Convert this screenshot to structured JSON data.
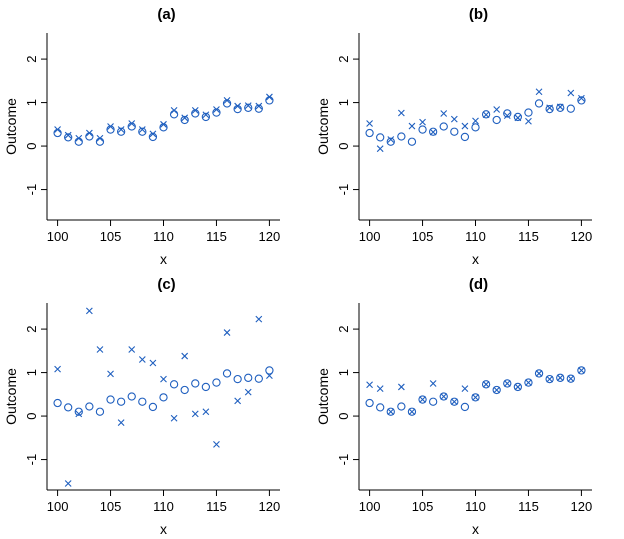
{
  "figure": {
    "marker_color": "#1f5fbf",
    "axis_color": "#000000"
  },
  "chart_data": [
    {
      "type": "scatter",
      "title": "(a)",
      "xlabel": "x",
      "ylabel": "Outcome",
      "xlim": [
        99,
        121
      ],
      "ylim": [
        -1.7,
        2.6
      ],
      "xticks": [
        100,
        105,
        110,
        115,
        120
      ],
      "yticks": [
        -1,
        0,
        1,
        2
      ],
      "x": [
        100,
        101,
        102,
        103,
        104,
        105,
        106,
        107,
        108,
        109,
        110,
        111,
        112,
        113,
        114,
        115,
        116,
        117,
        118,
        119,
        120
      ],
      "series": [
        {
          "name": "circles",
          "marker": "circle",
          "values": [
            0.3,
            0.2,
            0.1,
            0.22,
            0.1,
            0.38,
            0.33,
            0.45,
            0.33,
            0.21,
            0.43,
            0.73,
            0.6,
            0.75,
            0.67,
            0.77,
            0.98,
            0.85,
            0.88,
            0.86,
            1.05
          ]
        },
        {
          "name": "crosses",
          "marker": "x",
          "values": [
            0.38,
            0.25,
            0.18,
            0.3,
            0.18,
            0.45,
            0.38,
            0.52,
            0.38,
            0.28,
            0.5,
            0.82,
            0.65,
            0.82,
            0.72,
            0.84,
            1.05,
            0.92,
            0.93,
            0.92,
            1.13
          ]
        }
      ]
    },
    {
      "type": "scatter",
      "title": "(b)",
      "xlabel": "x",
      "ylabel": "Outcome",
      "xlim": [
        99,
        121
      ],
      "ylim": [
        -1.7,
        2.6
      ],
      "xticks": [
        100,
        105,
        110,
        115,
        120
      ],
      "yticks": [
        -1,
        0,
        1,
        2
      ],
      "x": [
        100,
        101,
        102,
        103,
        104,
        105,
        106,
        107,
        108,
        109,
        110,
        111,
        112,
        113,
        114,
        115,
        116,
        117,
        118,
        119,
        120
      ],
      "series": [
        {
          "name": "circles",
          "marker": "circle",
          "values": [
            0.3,
            0.2,
            0.1,
            0.22,
            0.1,
            0.38,
            0.33,
            0.45,
            0.33,
            0.21,
            0.43,
            0.73,
            0.6,
            0.75,
            0.67,
            0.77,
            0.98,
            0.85,
            0.88,
            0.86,
            1.05
          ]
        },
        {
          "name": "crosses",
          "marker": "x",
          "values": [
            0.52,
            -0.06,
            0.15,
            0.76,
            0.46,
            0.55,
            0.32,
            0.75,
            0.62,
            0.46,
            0.58,
            0.72,
            0.84,
            0.7,
            0.65,
            0.57,
            1.25,
            0.88,
            0.9,
            1.22,
            1.1
          ]
        }
      ]
    },
    {
      "type": "scatter",
      "title": "(c)",
      "xlabel": "x",
      "ylabel": "Outcome",
      "xlim": [
        99,
        121
      ],
      "ylim": [
        -1.7,
        2.6
      ],
      "xticks": [
        100,
        105,
        110,
        115,
        120
      ],
      "yticks": [
        -1,
        0,
        1,
        2
      ],
      "x": [
        100,
        101,
        102,
        103,
        104,
        105,
        106,
        107,
        108,
        109,
        110,
        111,
        112,
        113,
        114,
        115,
        116,
        117,
        118,
        119,
        120
      ],
      "series": [
        {
          "name": "circles",
          "marker": "circle",
          "values": [
            0.3,
            0.2,
            0.1,
            0.22,
            0.1,
            0.38,
            0.33,
            0.45,
            0.33,
            0.21,
            0.43,
            0.73,
            0.6,
            0.75,
            0.67,
            0.77,
            0.98,
            0.85,
            0.88,
            0.86,
            1.05
          ]
        },
        {
          "name": "crosses",
          "marker": "x",
          "values": [
            1.08,
            -1.55,
            0.05,
            2.42,
            1.53,
            0.97,
            -0.15,
            1.53,
            1.3,
            1.22,
            0.85,
            -0.05,
            1.38,
            0.05,
            0.1,
            -0.65,
            1.92,
            0.35,
            0.55,
            2.23,
            0.93
          ]
        }
      ]
    },
    {
      "type": "scatter",
      "title": "(d)",
      "xlabel": "x",
      "ylabel": "Outcome",
      "xlim": [
        99,
        121
      ],
      "ylim": [
        -1.7,
        2.6
      ],
      "xticks": [
        100,
        105,
        110,
        115,
        120
      ],
      "yticks": [
        -1,
        0,
        1,
        2
      ],
      "x": [
        100,
        101,
        102,
        103,
        104,
        105,
        106,
        107,
        108,
        109,
        110,
        111,
        112,
        113,
        114,
        115,
        116,
        117,
        118,
        119,
        120
      ],
      "series": [
        {
          "name": "circles",
          "marker": "circle",
          "values": [
            0.3,
            0.2,
            0.1,
            0.22,
            0.1,
            0.38,
            0.33,
            0.45,
            0.33,
            0.21,
            0.43,
            0.73,
            0.6,
            0.75,
            0.67,
            0.77,
            0.98,
            0.85,
            0.88,
            0.86,
            1.05
          ]
        },
        {
          "name": "crosses",
          "marker": "x",
          "values": [
            0.72,
            0.63,
            0.1,
            0.67,
            0.1,
            0.38,
            0.75,
            0.45,
            0.33,
            0.63,
            0.43,
            0.73,
            0.6,
            0.75,
            0.67,
            0.77,
            0.98,
            0.85,
            0.88,
            0.86,
            1.05
          ]
        }
      ]
    }
  ]
}
